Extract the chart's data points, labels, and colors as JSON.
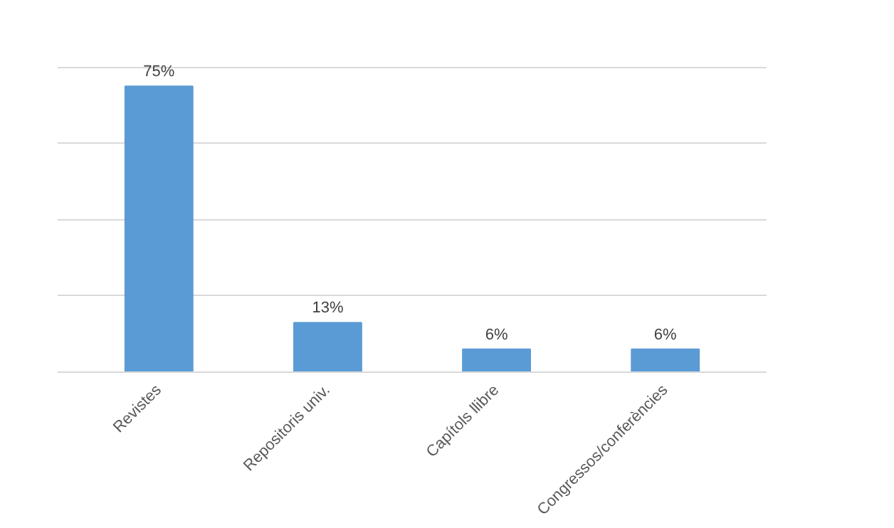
{
  "chart_data": {
    "type": "bar",
    "categories": [
      "Revistes",
      "Repositoris univ.",
      "Capítols llibre",
      "Congressos/conferències"
    ],
    "values": [
      75,
      13,
      6,
      6
    ],
    "value_labels": [
      "75%",
      "13%",
      "6%",
      "6%"
    ],
    "color": "#5b9bd5",
    "grid": "y",
    "tick_labels": "x"
  }
}
